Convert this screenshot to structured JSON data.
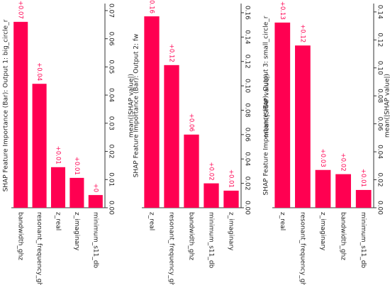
{
  "chart_data": [
    {
      "type": "bar",
      "title": "SHAP Feature Importance (Bar): Output 1: big_circle_r",
      "ylabel": "mean(|SHAP value|)",
      "color": "#ff0051",
      "categories": [
        "bandwidth_ghz",
        "resonant_frequency_ghz",
        "z_real",
        "z_imaginary",
        "minimum_s11_db"
      ],
      "values": [
        0.066,
        0.044,
        0.0144,
        0.0106,
        0.0045
      ],
      "value_labels": [
        "+0.07",
        "+0.04",
        "+0.01",
        "+0.01",
        "+0"
      ],
      "ylim": [
        0,
        0.0725
      ],
      "yticks": [
        {
          "value": 0,
          "label": "0.00"
        },
        0.01,
        0.02,
        0.03,
        0.04,
        0.05,
        0.06,
        0.07
      ]
    },
    {
      "type": "bar",
      "title": "SHAP Feature Importance (Bar): Output 2: fw",
      "ylabel": "mean(|SHAP value|)",
      "color": "#ff0051",
      "categories": [
        "z_real",
        "resonant_frequency_ghz",
        "bandwidth_ghz",
        "minimum_s11_db",
        "z_imaginary"
      ],
      "values": [
        0.157,
        0.117,
        0.06,
        0.02,
        0.014
      ],
      "value_labels": [
        "+0.16",
        "+0.12",
        "+0.06",
        "+0.02",
        "+0.01"
      ],
      "ylim": [
        0,
        0.1675
      ],
      "yticks": [
        {
          "value": 0,
          "label": "0.00"
        },
        0.02,
        0.04,
        0.06,
        0.08,
        {
          "value": 0.1,
          "label": "0.10"
        },
        0.12,
        0.14,
        0.16
      ]
    },
    {
      "type": "bar",
      "title": "SHAP Feature Importance (Bar): Output 3: small_circle_r",
      "ylabel": "mean(|SHAP value|)",
      "color": "#ff0051",
      "categories": [
        "z_real",
        "resonant_frequency_ghz",
        "z_imaginary",
        "bandwidth_ghz",
        "minimum_s11_db"
      ],
      "values": [
        0.1324,
        0.116,
        0.027,
        0.024,
        0.0127
      ],
      "value_labels": [
        "+0.13",
        "+0.12",
        "+0.03",
        "+0.02",
        "+0.01"
      ],
      "ylim": [
        0,
        0.146
      ],
      "yticks": [
        {
          "value": 0,
          "label": "0.00"
        },
        0.02,
        0.04,
        0.06,
        0.08,
        {
          "value": 0.1,
          "label": "0.10"
        },
        0.12,
        0.14
      ]
    }
  ]
}
